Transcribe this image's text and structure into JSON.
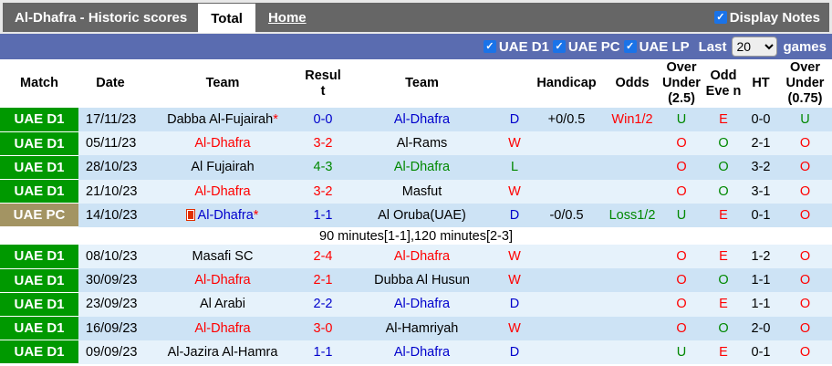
{
  "header": {
    "title": "Al-Dhafra - Historic scores",
    "tabs": [
      {
        "label": "Total",
        "active": true
      },
      {
        "label": "Home",
        "active": false
      }
    ],
    "display_notes": "Display Notes"
  },
  "filters": {
    "leagues": [
      "UAE D1",
      "UAE PC",
      "UAE LP"
    ],
    "last_label": "Last",
    "last_value": "20",
    "games_label": "games"
  },
  "columns": [
    "Match",
    "Date",
    "Team",
    "Resul t",
    "Team",
    "",
    "Handicap",
    "Odds",
    "Over Under (2.5)",
    "Odd Eve n",
    "HT",
    "Over Under (0.75)"
  ],
  "colors": {
    "win": "#ff0000",
    "draw": "#0000cc",
    "loss": "#008800",
    "d1": "#009900",
    "pc": "#a39463"
  },
  "rows": [
    {
      "league": "UAE D1",
      "date": "17/11/23",
      "home": "Dabba Al-Fujairah",
      "home_star": true,
      "home_color": "black",
      "score": "0-0",
      "away": "Al-Dhafra",
      "away_color": "blue",
      "result": "D",
      "handicap": "+0/0.5",
      "odds": "Win1/2",
      "odds_color": "red",
      "ou": "U",
      "oe": "E",
      "ht": "0-0",
      "ou2": "U"
    },
    {
      "league": "UAE D1",
      "date": "05/11/23",
      "home": "Al-Dhafra",
      "home_color": "red",
      "score": "3-2",
      "away": "Al-Rams",
      "away_color": "black",
      "result": "W",
      "handicap": "",
      "odds": "",
      "ou": "O",
      "oe": "O",
      "ht": "2-1",
      "ou2": "O"
    },
    {
      "league": "UAE D1",
      "date": "28/10/23",
      "home": "Al Fujairah",
      "home_color": "black",
      "score": "4-3",
      "away": "Al-Dhafra",
      "away_color": "green",
      "result": "L",
      "handicap": "",
      "odds": "",
      "ou": "O",
      "oe": "O",
      "ht": "3-2",
      "ou2": "O"
    },
    {
      "league": "UAE D1",
      "date": "21/10/23",
      "home": "Al-Dhafra",
      "home_color": "red",
      "score": "3-2",
      "away": "Masfut",
      "away_color": "black",
      "result": "W",
      "handicap": "",
      "odds": "",
      "ou": "O",
      "oe": "O",
      "ht": "3-1",
      "ou2": "O"
    },
    {
      "league": "UAE PC",
      "date": "14/10/23",
      "home": "Al-Dhafra",
      "home_star": true,
      "home_flag": true,
      "home_color": "blue",
      "score": "1-1",
      "away": "Al Oruba(UAE)",
      "away_color": "black",
      "result": "D",
      "handicap": "-0/0.5",
      "odds": "Loss1/2",
      "odds_color": "green",
      "ou": "U",
      "oe": "E",
      "ht": "0-1",
      "ou2": "O",
      "note": "90 minutes[1-1],120 minutes[2-3]"
    },
    {
      "league": "UAE D1",
      "date": "08/10/23",
      "home": "Masafi SC",
      "home_color": "black",
      "score": "2-4",
      "away": "Al-Dhafra",
      "away_color": "red",
      "result": "W",
      "handicap": "",
      "odds": "",
      "ou": "O",
      "oe": "E",
      "ht": "1-2",
      "ou2": "O"
    },
    {
      "league": "UAE D1",
      "date": "30/09/23",
      "home": "Al-Dhafra",
      "home_color": "red",
      "score": "2-1",
      "away": "Dubba Al Husun",
      "away_color": "black",
      "result": "W",
      "handicap": "",
      "odds": "",
      "ou": "O",
      "oe": "O",
      "ht": "1-1",
      "ou2": "O"
    },
    {
      "league": "UAE D1",
      "date": "23/09/23",
      "home": "Al Arabi",
      "home_color": "black",
      "score": "2-2",
      "away": "Al-Dhafra",
      "away_color": "blue",
      "result": "D",
      "handicap": "",
      "odds": "",
      "ou": "O",
      "oe": "E",
      "ht": "1-1",
      "ou2": "O"
    },
    {
      "league": "UAE D1",
      "date": "16/09/23",
      "home": "Al-Dhafra",
      "home_color": "red",
      "score": "3-0",
      "away": "Al-Hamriyah",
      "away_color": "black",
      "result": "W",
      "handicap": "",
      "odds": "",
      "ou": "O",
      "oe": "O",
      "ht": "2-0",
      "ou2": "O"
    },
    {
      "league": "UAE D1",
      "date": "09/09/23",
      "home": "Al-Jazira Al-Hamra",
      "home_color": "black",
      "score": "1-1",
      "away": "Al-Dhafra",
      "away_color": "blue",
      "result": "D",
      "handicap": "",
      "odds": "",
      "ou": "U",
      "oe": "E",
      "ht": "0-1",
      "ou2": "O"
    }
  ]
}
